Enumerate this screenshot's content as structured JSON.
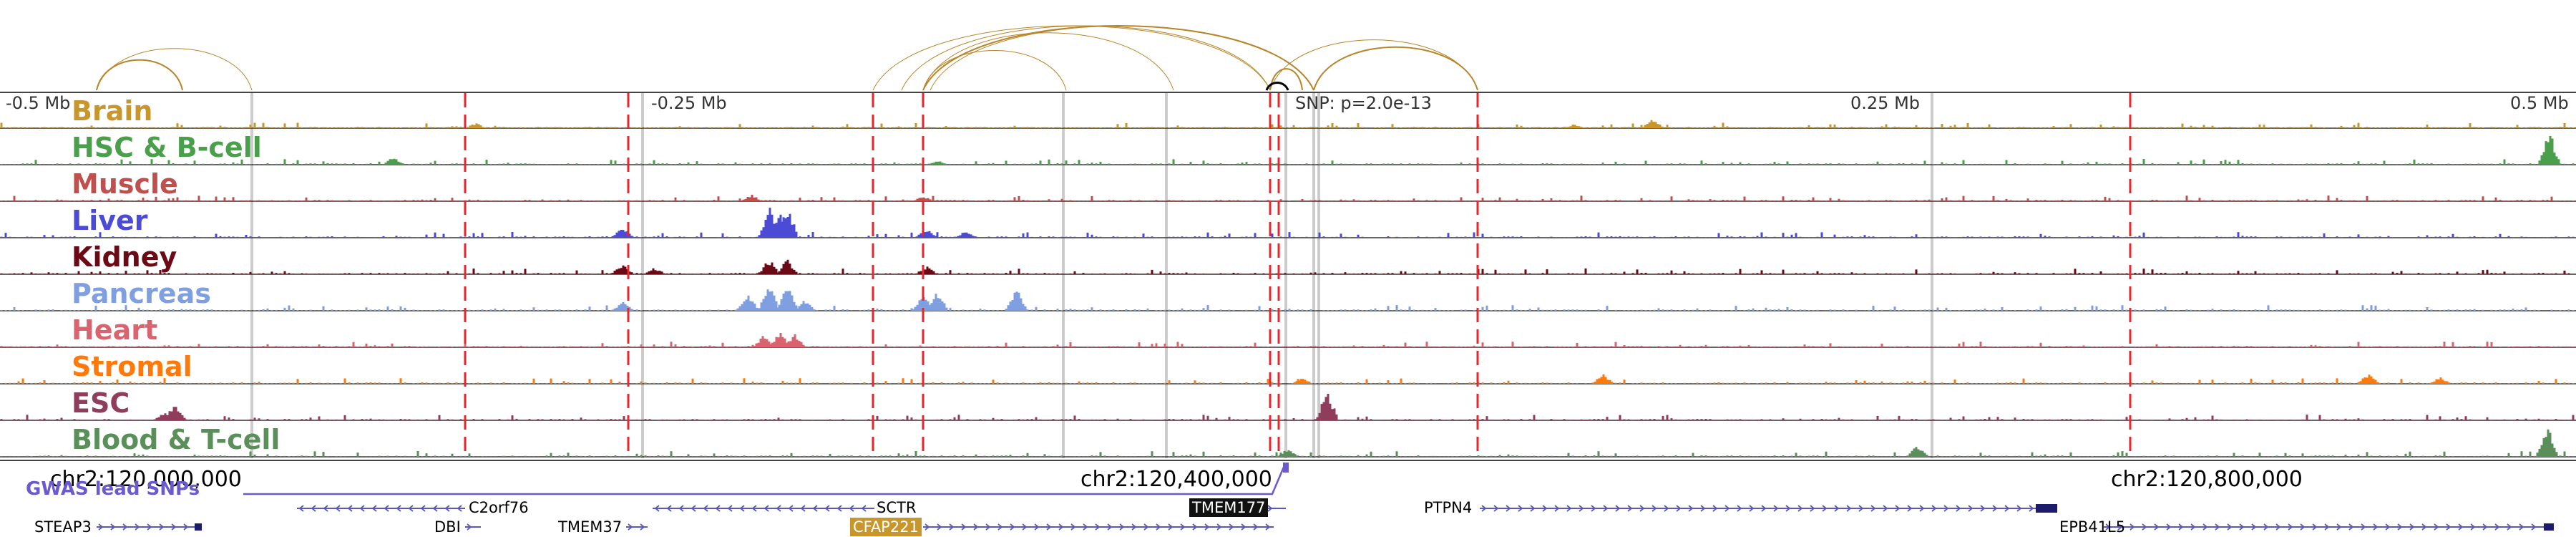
{
  "tracks": [
    {
      "name": "Brain",
      "color": "#c8962a"
    },
    {
      "name": "HSC & B-cell",
      "color": "#4a9f4a"
    },
    {
      "name": "Muscle",
      "color": "#c0504d"
    },
    {
      "name": "Liver",
      "color": "#4b4bd6"
    },
    {
      "name": "Kidney",
      "color": "#6b0a14"
    },
    {
      "name": "Pancreas",
      "color": "#7f9fe0"
    },
    {
      "name": "Heart",
      "color": "#d9636e"
    },
    {
      "name": "Stromal",
      "color": "#ff7a0a"
    },
    {
      "name": "ESC",
      "color": "#8f3d5a"
    },
    {
      "name": "Blood & T-cell",
      "color": "#5a8f5a"
    }
  ],
  "axis": {
    "ticks": [
      "-0.5 Mb",
      "-0.25 Mb",
      "0.25 Mb",
      "0.5 Mb"
    ],
    "snp_label": "SNP: p=2.0e-13"
  },
  "coordinates": [
    "chr2:120,000,000",
    "chr2:120,400,000",
    "chr2:120,800,000"
  ],
  "gwas": {
    "label": "GWAS lead SNPs"
  },
  "genes": {
    "c2orf76": "C2orf76",
    "sctr": "SCTR",
    "tmem177": "TMEM177",
    "ptpn4": "PTPN4",
    "steap3": "STEAP3",
    "dbi": "DBI",
    "tmem37": "TMEM37",
    "cfap221": "CFAP221",
    "epb41l5": "EPB41L5"
  },
  "colors": {
    "arc": "#b8862a",
    "red_line": "#e8262c",
    "gray_line": "#cccccc",
    "gene_line": "#5a5ab5",
    "gwas": "#6a5acd"
  }
}
